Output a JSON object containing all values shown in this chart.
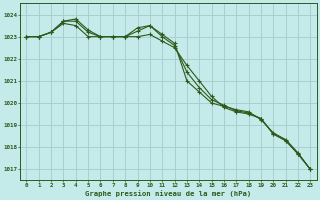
{
  "title": "Graphe pression niveau de la mer (hPa)",
  "background_color": "#c5eaea",
  "grid_color": "#a8d0d0",
  "line_color": "#2d5a1b",
  "xlim": [
    -0.5,
    23.5
  ],
  "ylim": [
    1016.5,
    1024.5
  ],
  "yticks": [
    1017,
    1018,
    1019,
    1020,
    1021,
    1022,
    1023,
    1024
  ],
  "xticks": [
    0,
    1,
    2,
    3,
    4,
    5,
    6,
    7,
    8,
    9,
    10,
    11,
    12,
    13,
    14,
    15,
    16,
    17,
    18,
    19,
    20,
    21,
    22,
    23
  ],
  "series": [
    [
      1023.0,
      1023.0,
      1023.2,
      1023.6,
      1023.5,
      1023.0,
      1023.0,
      1023.0,
      1023.0,
      1023.0,
      1023.1,
      1022.8,
      1022.5,
      1021.7,
      1021.0,
      1020.3,
      1019.8,
      1019.6,
      1019.5,
      1019.3,
      1018.6,
      1018.3,
      1017.7,
      1017.0
    ],
    [
      1023.0,
      1023.0,
      1023.2,
      1023.7,
      1023.8,
      1023.3,
      1023.0,
      1023.0,
      1023.0,
      1023.4,
      1023.5,
      1023.1,
      1022.7,
      1021.0,
      1020.5,
      1020.0,
      1019.85,
      1019.7,
      1019.6,
      1019.25,
      1018.65,
      1018.35,
      1017.75,
      1017.0
    ],
    [
      1023.0,
      1023.0,
      1023.2,
      1023.7,
      1023.7,
      1023.2,
      1023.0,
      1023.0,
      1023.0,
      1023.25,
      1023.5,
      1023.0,
      1022.6,
      1021.4,
      1020.7,
      1020.15,
      1019.9,
      1019.65,
      1019.55,
      1019.3,
      1018.6,
      1018.3,
      1017.7,
      1017.0
    ]
  ]
}
